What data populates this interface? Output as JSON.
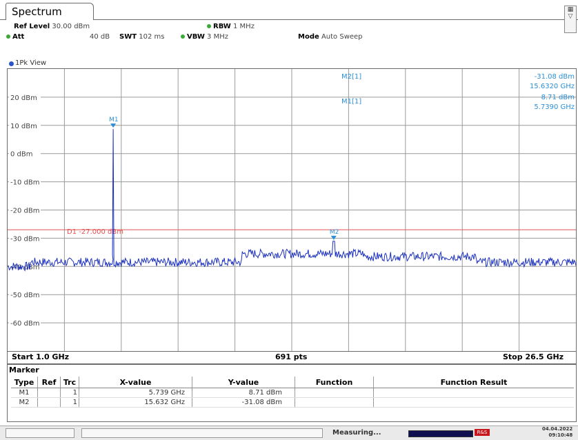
{
  "tab": {
    "title": "Spectrum"
  },
  "settings": {
    "ref_level_label": "Ref Level",
    "ref_level_value": "30.00 dBm",
    "att_label": "Att",
    "att_value": "40 dB",
    "swt_label": "SWT",
    "swt_value": "102 ms",
    "rbw_label": "RBW",
    "rbw_value": "1 MHz",
    "vbw_label": "VBW",
    "vbw_value": "3 MHz",
    "mode_label": "Mode",
    "mode_value": "Auto Sweep"
  },
  "view": {
    "label": "1Pk View"
  },
  "plot": {
    "y_ticks": [
      "20 dBm",
      "10 dBm",
      "0 dBm",
      "-10 dBm",
      "-20 dBm",
      "-30 dBm",
      "-40 dBm",
      "-50 dBm",
      "-60 dBm"
    ],
    "display_line_label": "D1  -27.000 dBm",
    "marker_readouts": [
      {
        "name": "M2[1]",
        "value": "-31.08 dBm",
        "freq": "15.6320 GHz"
      },
      {
        "name": "M1[1]",
        "value": "8.71 dBm",
        "freq": "5.7390 GHz"
      }
    ],
    "marker_tags": [
      "M1",
      "M2"
    ],
    "trace_color": "#1a2fc0",
    "display_line_color": "#e05050",
    "readout_color": "#2a8fd6"
  },
  "footer": {
    "start": "Start 1.0 GHz",
    "points": "691 pts",
    "stop": "Stop 26.5 GHz"
  },
  "marker_table": {
    "title": "Marker",
    "headers": [
      "Type",
      "Ref",
      "Trc",
      "X-value",
      "Y-value",
      "Function",
      "Function Result"
    ],
    "rows": [
      [
        "M1",
        "",
        "1",
        "5.739 GHz",
        "8.71 dBm",
        "",
        ""
      ],
      [
        "M2",
        "",
        "1",
        "15.632 GHz",
        "-31.08 dBm",
        "",
        ""
      ]
    ]
  },
  "status": {
    "measuring": "Measuring...",
    "date": "04.04.2022",
    "time": "09:10:48"
  }
}
